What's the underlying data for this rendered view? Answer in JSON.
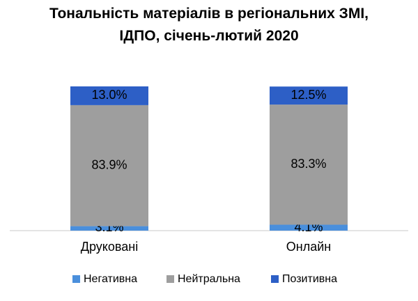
{
  "chart_data": {
    "type": "stacked-bar",
    "title": "Тональність матеріалів в регіональних ЗМІ, ІДПО, січень-лютий 2020",
    "categories": [
      "Друковані",
      "Онлайн"
    ],
    "ylim": [
      0,
      100
    ],
    "series": [
      {
        "name": "Негативна",
        "color": "#4a8fdc",
        "values": [
          3.1,
          4.1
        ],
        "value_labels": [
          "3.1%",
          "4.1%"
        ]
      },
      {
        "name": "Нейтральна",
        "color": "#9e9e9e",
        "values": [
          83.9,
          83.3
        ],
        "value_labels": [
          "83.9%",
          "83.3%"
        ]
      },
      {
        "name": "Позитивна",
        "color": "#2d5fc6",
        "values": [
          13.0,
          12.5
        ],
        "value_labels": [
          "13.0%",
          "12.5%"
        ]
      }
    ]
  }
}
